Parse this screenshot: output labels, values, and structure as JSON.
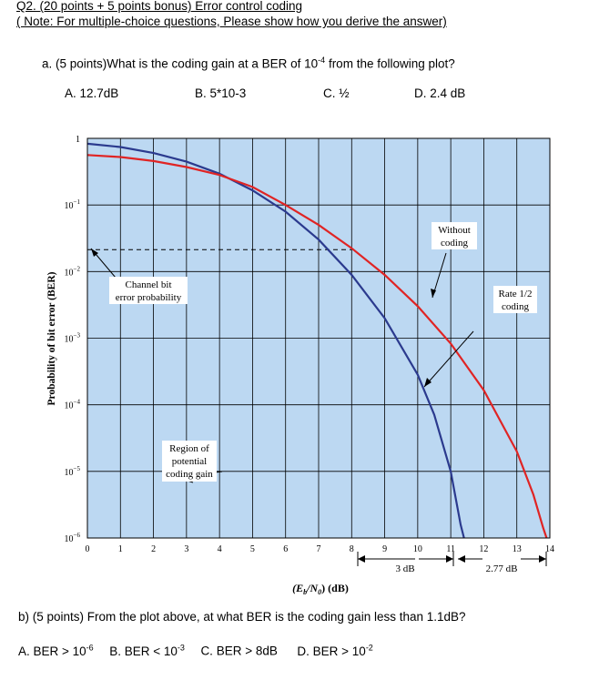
{
  "question": {
    "title": "Q2. (20 points + 5 points bonus) Error control coding",
    "note": "( Note: For multiple-choice questions, Please show how you derive the answer)"
  },
  "part_a": {
    "prompt_pre": "a.  (5 points)What is the coding gain at a BER of 10",
    "prompt_exp": "-4",
    "prompt_post": " from the following plot?",
    "options": {
      "a": "A.  12.7dB",
      "b": "B. 5*10-3",
      "c": "C. ½",
      "d": "D. 2.4 dB"
    }
  },
  "part_b": {
    "prompt": "b) (5 points) From the plot above, at what BER is the coding gain less than 1.1dB?",
    "opt_a_pre": "A. BER > 10",
    "opt_a_exp": "-6",
    "opt_b_pre": "B. BER < 10",
    "opt_b_exp": "-3",
    "opt_c": "C. BER > 8dB",
    "opt_d_pre": "D. BER > 10",
    "opt_d_exp": "-2"
  },
  "chart_data": {
    "type": "line",
    "xlabel": "(E_b/N_0) (dB)",
    "xlabel_parts": {
      "a": "(E",
      "b": "b",
      "c": "/N",
      "d": "0",
      "e": ") (dB)"
    },
    "ylabel": "Probability of bit error (BER)",
    "x_ticks": [
      "0",
      "1",
      "2",
      "3",
      "4",
      "5",
      "6",
      "7",
      "8",
      "9",
      "10",
      "11",
      "12",
      "13",
      "14"
    ],
    "y_ticks": [
      {
        "base": "1",
        "exp": ""
      },
      {
        "base": "10",
        "exp": "−1"
      },
      {
        "base": "10",
        "exp": "−2"
      },
      {
        "base": "10",
        "exp": "−3"
      },
      {
        "base": "10",
        "exp": "−4"
      },
      {
        "base": "10",
        "exp": "−5"
      },
      {
        "base": "10",
        "exp": "−6"
      }
    ],
    "xlim": [
      0,
      14
    ],
    "ylim_log10": [
      -6,
      0
    ],
    "y_scale": "log",
    "grid": true,
    "background_color": "#bcd8f2",
    "series": [
      {
        "color": "#2b3a8e",
        "points": [
          [
            0,
            -0.08
          ],
          [
            1,
            -0.13
          ],
          [
            2,
            -0.22
          ],
          [
            3,
            -0.35
          ],
          [
            4,
            -0.53
          ],
          [
            5,
            -0.78
          ],
          [
            6,
            -1.1
          ],
          [
            7,
            -1.52
          ],
          [
            8,
            -2.05
          ],
          [
            9,
            -2.7
          ],
          [
            10,
            -3.55
          ],
          [
            10.5,
            -4.15
          ],
          [
            11,
            -5.0
          ],
          [
            11.3,
            -5.8
          ],
          [
            11.4,
            -6.0
          ]
        ]
      },
      {
        "color": "#e02424",
        "points": [
          [
            0,
            -0.25
          ],
          [
            1,
            -0.28
          ],
          [
            2,
            -0.34
          ],
          [
            3,
            -0.43
          ],
          [
            4,
            -0.55
          ],
          [
            5,
            -0.73
          ],
          [
            6,
            -1.0
          ],
          [
            7,
            -1.3
          ],
          [
            8,
            -1.65
          ],
          [
            9,
            -2.05
          ],
          [
            10,
            -2.52
          ],
          [
            11,
            -3.08
          ],
          [
            12,
            -3.78
          ],
          [
            13,
            -4.7
          ],
          [
            13.5,
            -5.35
          ],
          [
            13.8,
            -5.85
          ],
          [
            13.9,
            -6.0
          ]
        ]
      }
    ],
    "dashed_guide": {
      "x_from": 0,
      "x_to": 8,
      "y_log10": -1.67
    },
    "annotations": {
      "channel_line1": "Channel bit",
      "channel_line2": "error probability",
      "without_line1": "Without",
      "without_line2": "coding",
      "rate_line1": "Rate 1/2",
      "rate_line2": "coding",
      "region_line1": "Region of",
      "region_line2": "potential",
      "region_line3": "coding gain",
      "gain1": "3 dB",
      "gain2": "2.77 dB"
    }
  }
}
